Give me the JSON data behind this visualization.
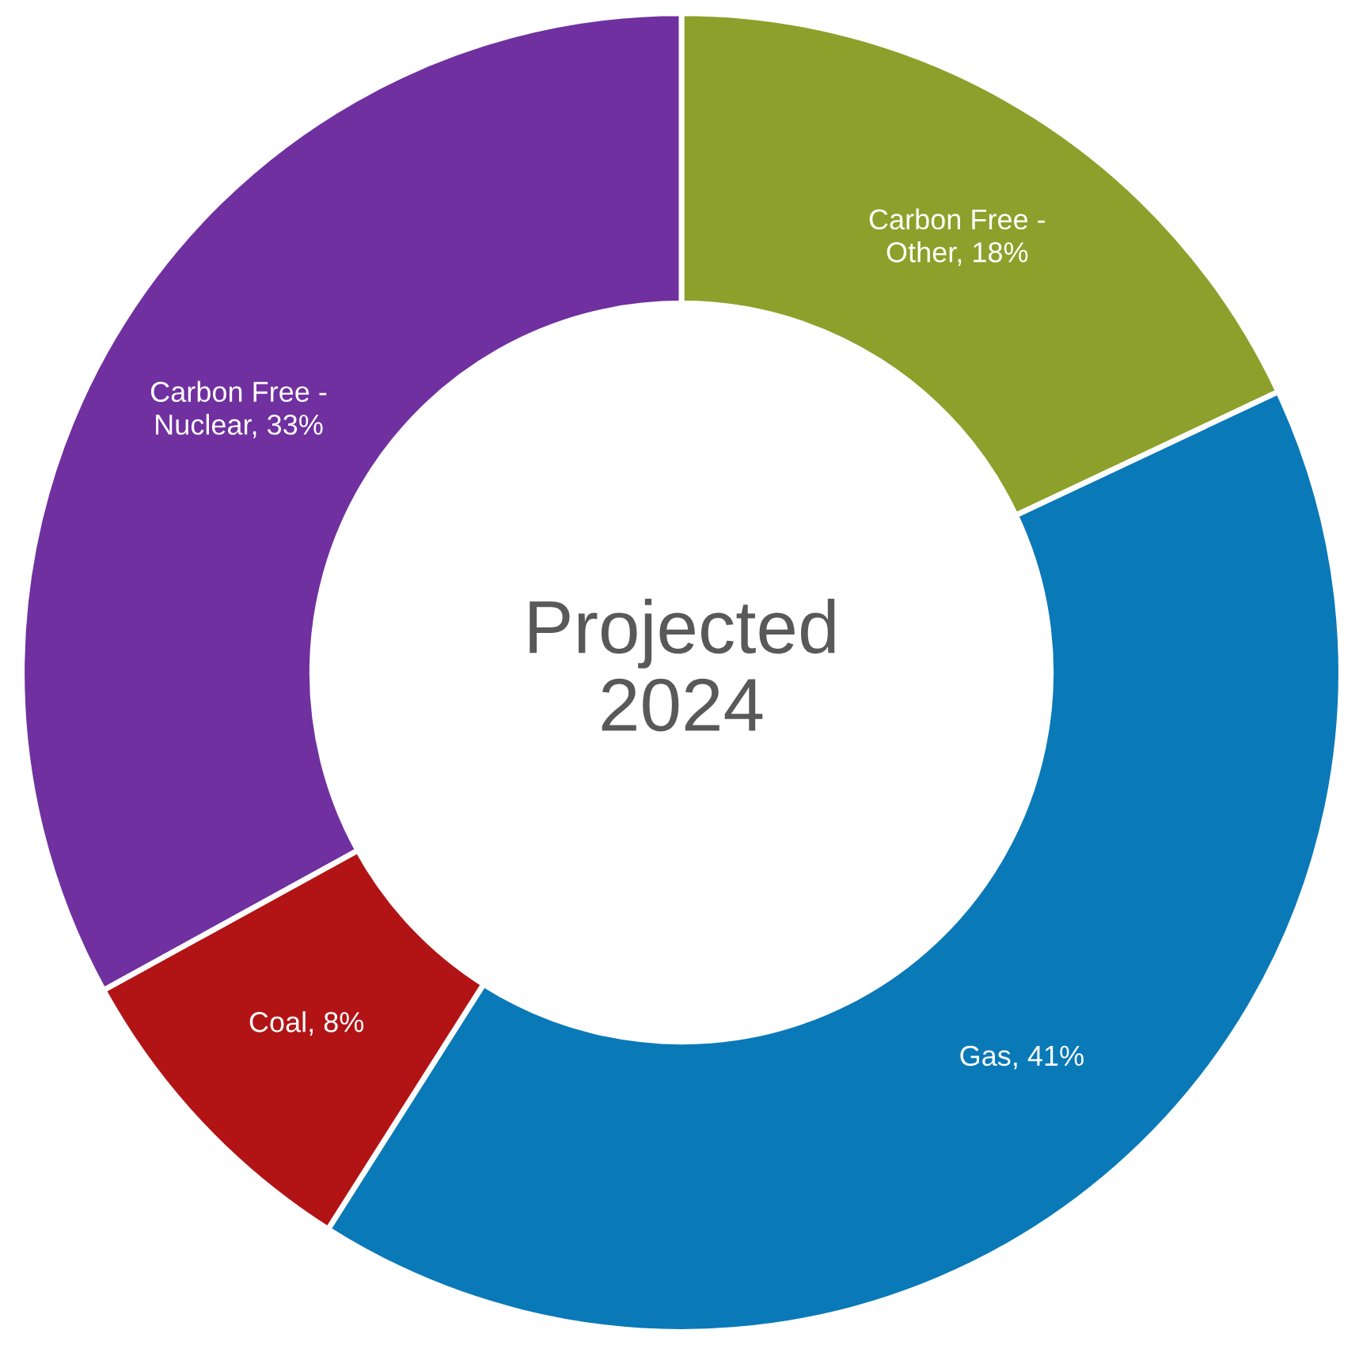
{
  "chart_data": {
    "type": "donut",
    "title": "Projected 2024",
    "categories": [
      "Carbon Free - Other",
      "Gas",
      "Coal",
      "Carbon Free - Nuclear"
    ],
    "values": [
      18,
      41,
      8,
      33
    ],
    "colors": [
      "#8da02b",
      "#0a79b8",
      "#b21416",
      "#7030a0"
    ],
    "value_labels": [
      "18%",
      "41%",
      "8%",
      "33%"
    ],
    "legend": false
  }
}
